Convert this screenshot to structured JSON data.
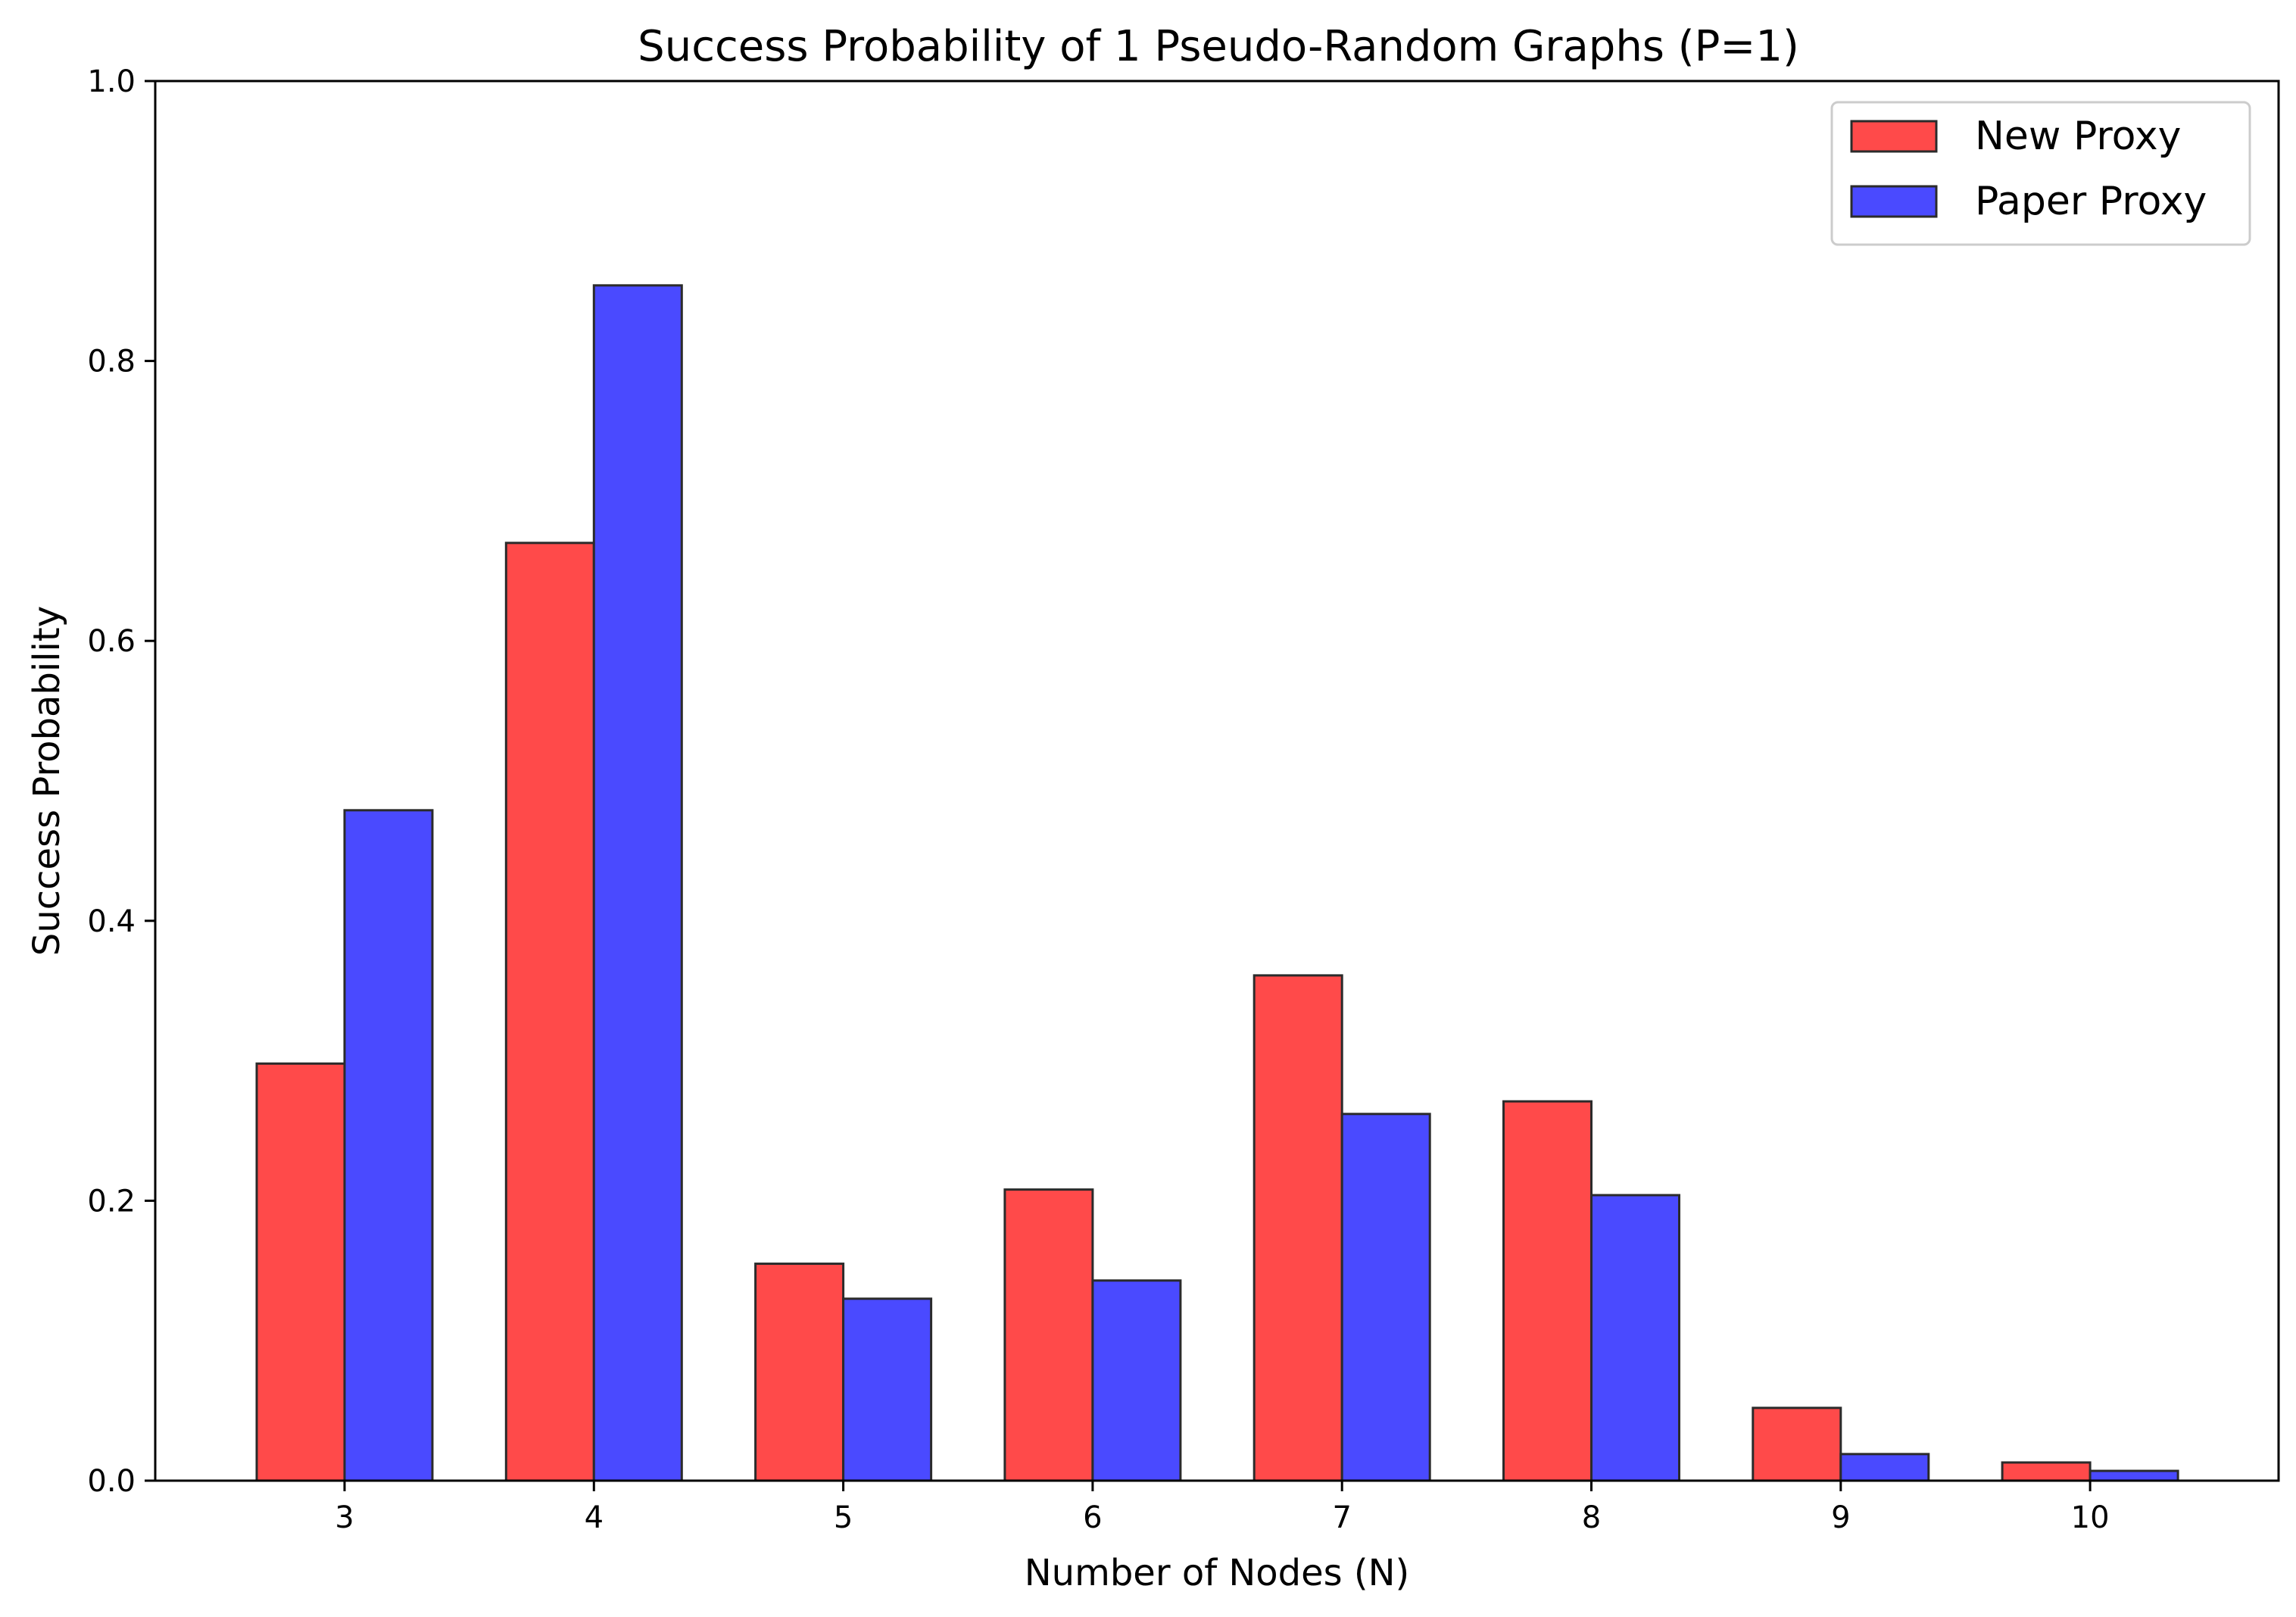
{
  "chart_data": {
    "type": "bar",
    "title": "Success Probability of 1 Pseudo-Random Graphs (P=1)",
    "xlabel": "Number of Nodes (N)",
    "ylabel": "Success Probability",
    "categories": [
      "3",
      "4",
      "5",
      "6",
      "7",
      "8",
      "9",
      "10"
    ],
    "series": [
      {
        "name": "New Proxy",
        "color": "#ff4a4a",
        "values": [
          0.298,
          0.67,
          0.155,
          0.208,
          0.361,
          0.271,
          0.052,
          0.013
        ]
      },
      {
        "name": "Paper Proxy",
        "color": "#4a4aff",
        "values": [
          0.479,
          0.854,
          0.13,
          0.143,
          0.262,
          0.204,
          0.019,
          0.007
        ]
      }
    ],
    "ylim": [
      0,
      1.0
    ],
    "yticks": [
      "0.0",
      "0.2",
      "0.4",
      "0.6",
      "0.8",
      "1.0"
    ],
    "grid": false,
    "legend_position": "top-right"
  }
}
